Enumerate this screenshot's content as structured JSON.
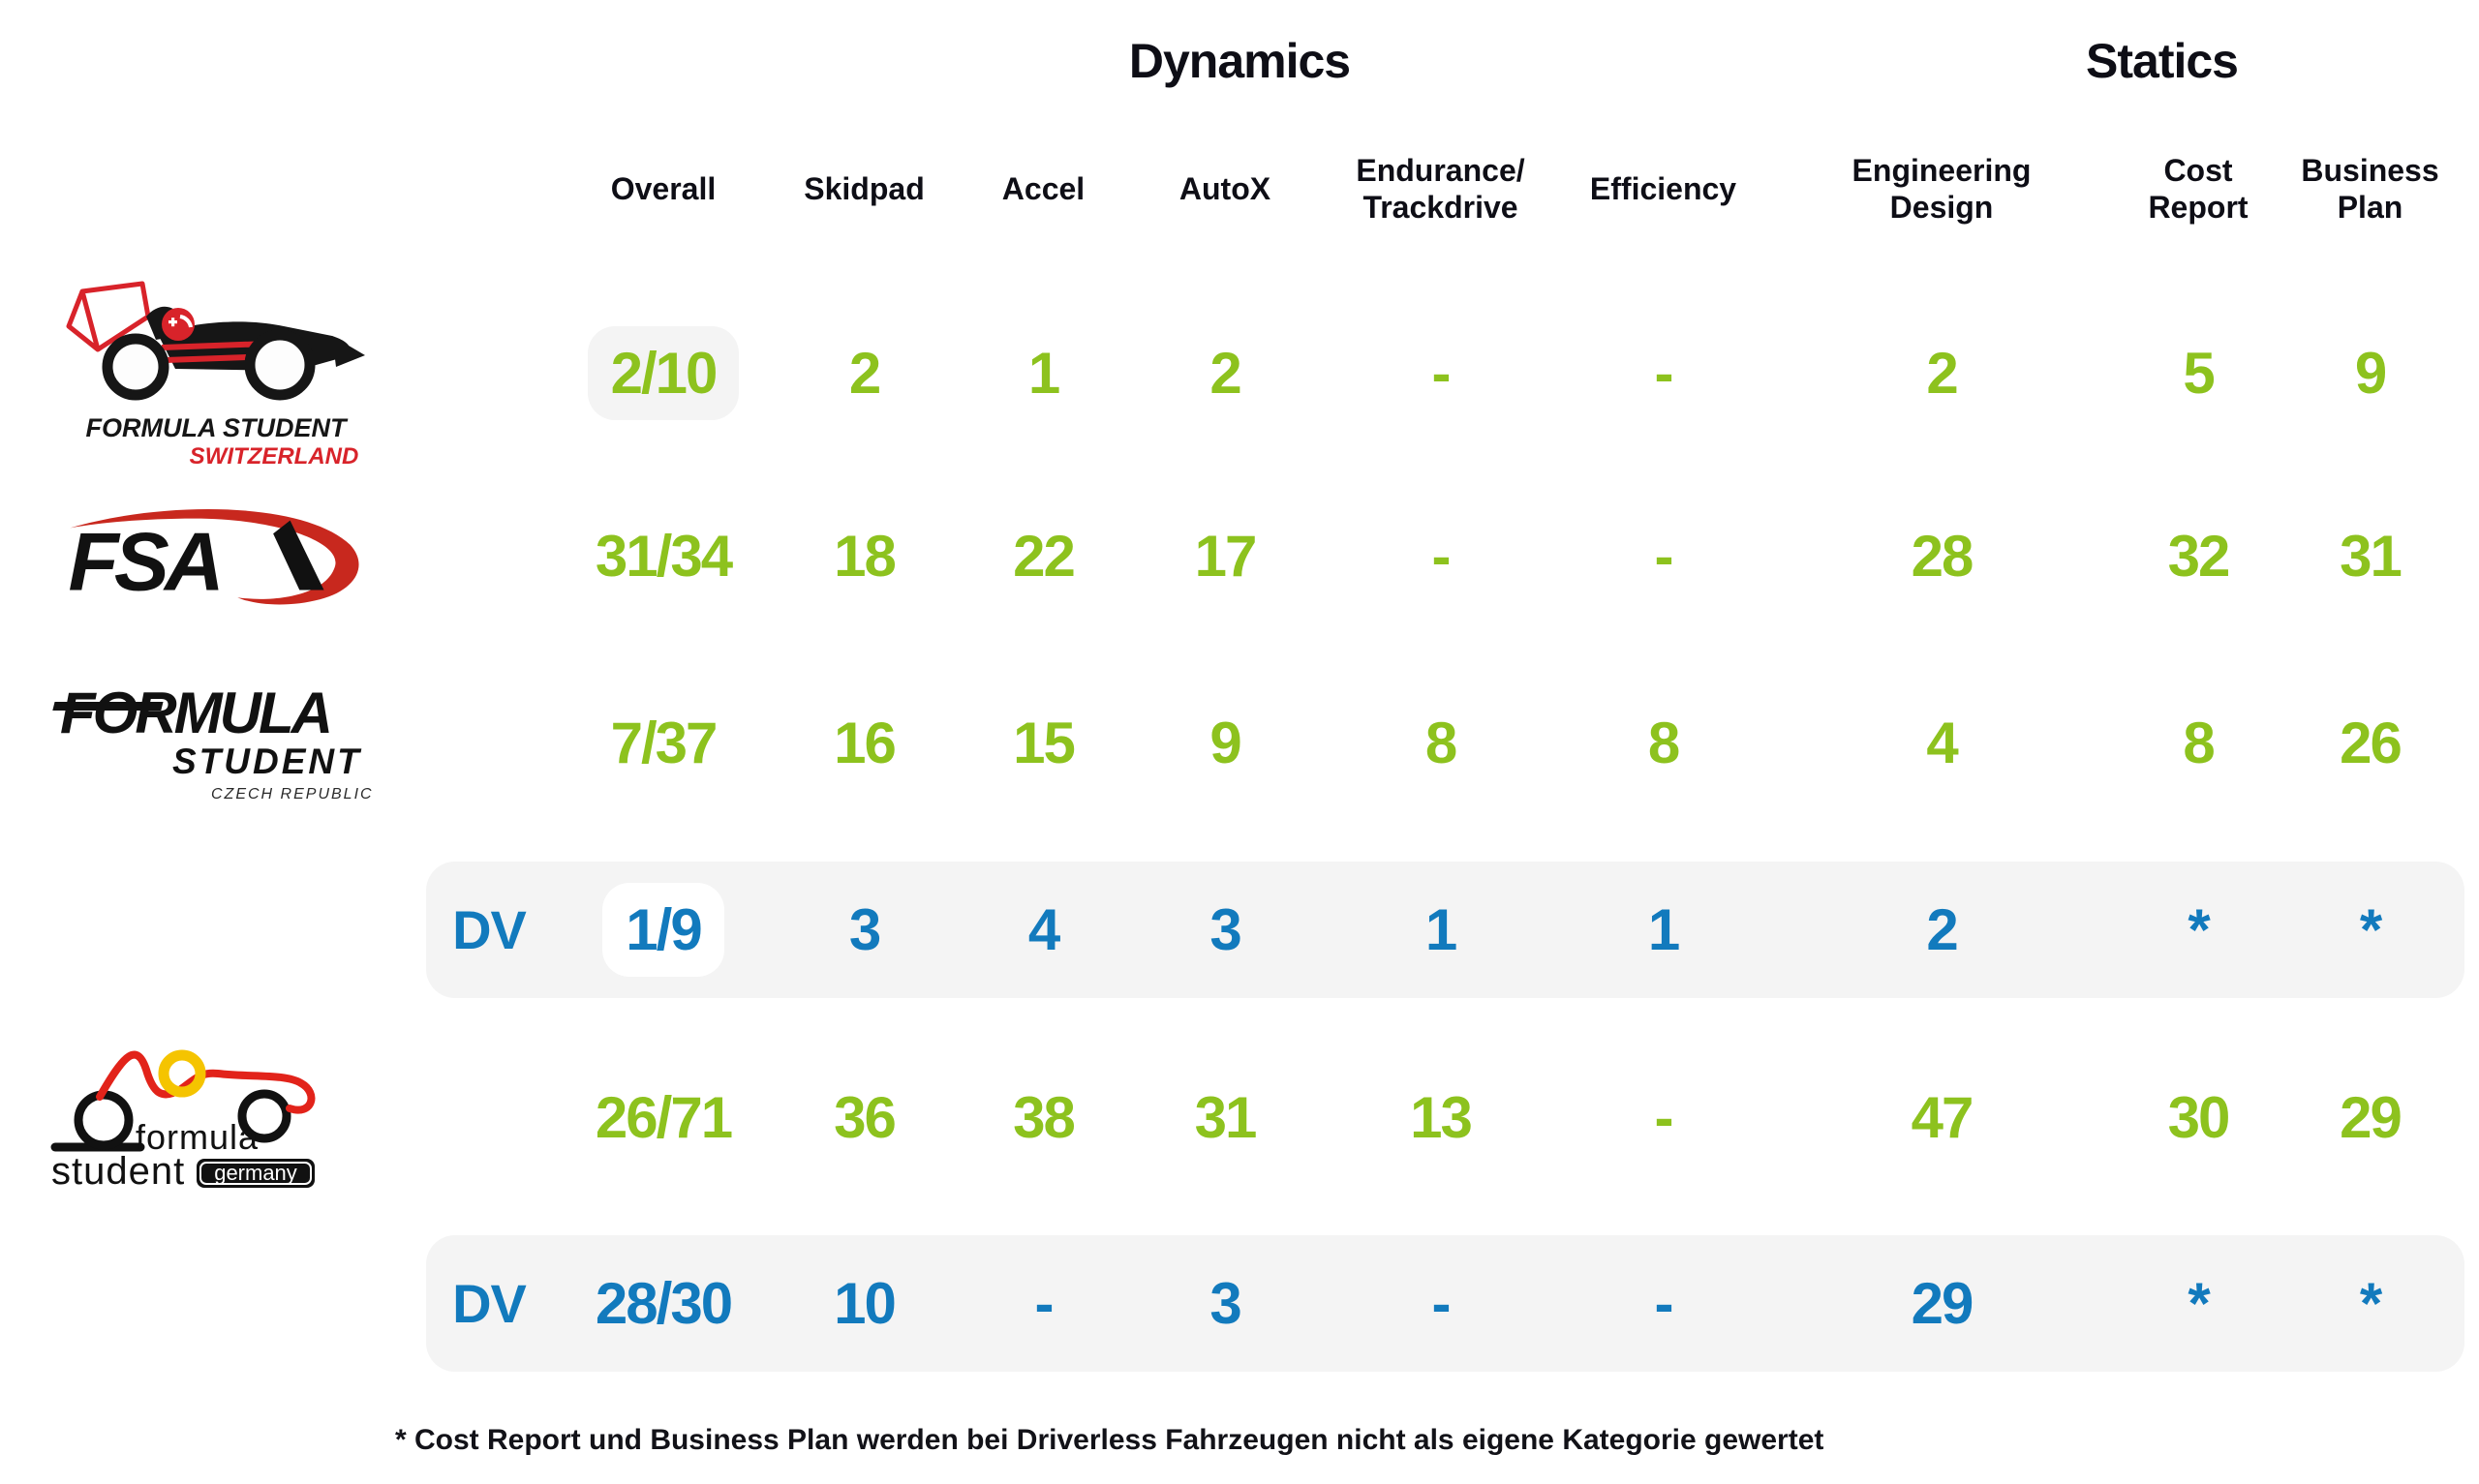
{
  "colors": {
    "green": "#8dc21e",
    "blue": "#127abd",
    "header_text": "#0e0e16",
    "band_gray": "#f4f4f4",
    "overall_highlight_row1": "#f4f4f4",
    "overall_highlight_dv": "#ffffff"
  },
  "chart_data": {
    "type": "table",
    "column_groups": [
      {
        "id": "dynamics",
        "label": "Dynamics",
        "span": 6
      },
      {
        "id": "statics",
        "label": "Statics",
        "span": 3
      }
    ],
    "columns": [
      {
        "id": "overall",
        "label": "Overall",
        "label2": "",
        "group": "dynamics"
      },
      {
        "id": "skidpad",
        "label": "Skidpad",
        "label2": "",
        "group": "dynamics"
      },
      {
        "id": "accel",
        "label": "Accel",
        "label2": "",
        "group": "dynamics"
      },
      {
        "id": "autox",
        "label": "AutoX",
        "label2": "",
        "group": "dynamics"
      },
      {
        "id": "endurance-trackdrive",
        "label": "Endurance/",
        "label2": "Trackdrive",
        "group": "dynamics"
      },
      {
        "id": "efficiency",
        "label": "Efficiency",
        "label2": "",
        "group": "dynamics"
      },
      {
        "id": "engineering-design",
        "label": "Engineering",
        "label2": "Design",
        "group": "statics"
      },
      {
        "id": "cost-report",
        "label": "Cost",
        "label2": "Report",
        "group": "statics"
      },
      {
        "id": "business-plan",
        "label": "Business",
        "label2": "Plan",
        "group": "statics"
      }
    ],
    "rows": [
      {
        "team": "Formula Student Switzerland",
        "logo": "formula-student-switzerland",
        "dv_label": "",
        "style": "green",
        "banded": false,
        "overall": {
          "value": "2/10",
          "highlight": "gray"
        },
        "values": [
          "2",
          "1",
          "2",
          "-",
          "-",
          "2",
          "5",
          "9"
        ]
      },
      {
        "team": "Formula Student Austria",
        "logo": "fsa",
        "dv_label": "",
        "style": "green",
        "banded": false,
        "overall": {
          "value": "31/34",
          "highlight": null
        },
        "values": [
          "18",
          "22",
          "17",
          "-",
          "-",
          "28",
          "32",
          "31"
        ]
      },
      {
        "team": "Formula Student Czech Republic",
        "logo": "formula-student-czech-republic",
        "dv_label": "",
        "style": "green",
        "banded": false,
        "overall": {
          "value": "7/37",
          "highlight": null
        },
        "values": [
          "16",
          "15",
          "9",
          "8",
          "8",
          "4",
          "8",
          "26"
        ]
      },
      {
        "team": "Formula Student Czech Republic Driverless",
        "logo": null,
        "dv_label": "DV",
        "style": "blue",
        "banded": true,
        "overall": {
          "value": "1/9",
          "highlight": "white"
        },
        "values": [
          "3",
          "4",
          "3",
          "1",
          "1",
          "2",
          "*",
          "*"
        ]
      },
      {
        "team": "Formula Student Germany",
        "logo": "formula-student-germany",
        "dv_label": "",
        "style": "green",
        "banded": false,
        "overall": {
          "value": "26/71",
          "highlight": null
        },
        "values": [
          "36",
          "38",
          "31",
          "13",
          "-",
          "47",
          "30",
          "29"
        ]
      },
      {
        "team": "Formula Student Germany Driverless",
        "logo": null,
        "dv_label": "DV",
        "style": "blue",
        "banded": true,
        "overall": {
          "value": "28/30",
          "highlight": null
        },
        "values": [
          "10",
          "-",
          "3",
          "-",
          "-",
          "29",
          "*",
          "*"
        ]
      }
    ],
    "footnote": "* Cost Report und Business Plan werden bei Driverless Fahrzeugen nicht als eigene Kategorie gewertet"
  },
  "logos": {
    "formula-student-switzerland": {
      "text1": "FORMULA STUDENT",
      "text2": "SWITZERLAND"
    },
    "fsa": {
      "text1": "FSA"
    },
    "formula-student-czech-republic": {
      "text1": "FORMULA",
      "text2": "STUDENT",
      "text3": "CZECH REPUBLIC"
    },
    "formula-student-germany": {
      "text1": "formula",
      "text2": "student",
      "text3": "germany"
    }
  }
}
